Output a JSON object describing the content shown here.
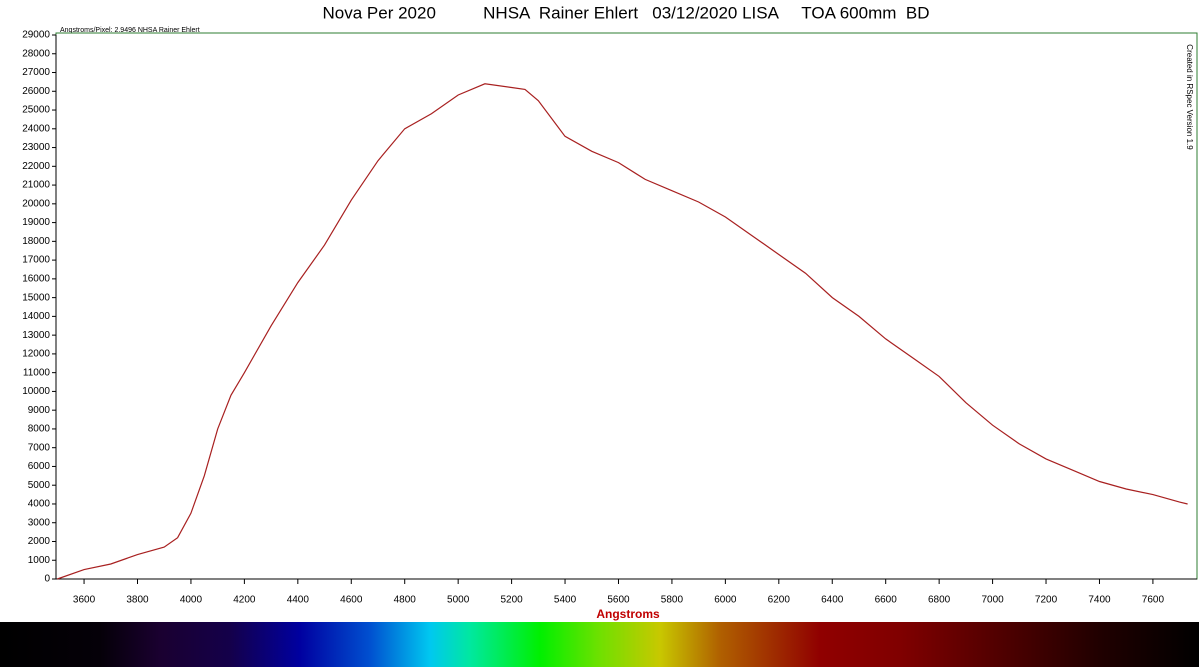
{
  "chart_data": {
    "type": "line",
    "title": "Nova Per 2020          NHSA  Rainer Ehlert   03/12/2020 LISA     TOA 600mm  BD",
    "subtitle": "Angstroms/Pixel: 2.9496 NHSA Rainer Ehlert",
    "annotation": "Created in RSpec Version 1.9",
    "x_label": "Angstroms",
    "x": [
      3500,
      3600,
      3700,
      3800,
      3900,
      3950,
      4000,
      4050,
      4100,
      4150,
      4200,
      4300,
      4400,
      4500,
      4600,
      4700,
      4800,
      4900,
      5000,
      5100,
      5200,
      5250,
      5300,
      5400,
      5500,
      5600,
      5700,
      5800,
      5900,
      6000,
      6100,
      6200,
      6300,
      6400,
      6500,
      6600,
      6700,
      6800,
      6900,
      7000,
      7100,
      7200,
      7300,
      7400,
      7500,
      7600,
      7700,
      7730
    ],
    "series": [
      {
        "color": "#a82020",
        "values": [
          0,
          500,
          800,
          1300,
          1700,
          2200,
          3500,
          5500,
          8000,
          9800,
          11000,
          13500,
          15800,
          17800,
          20200,
          22300,
          24000,
          24800,
          25800,
          26400,
          26200,
          26100,
          25500,
          23600,
          22800,
          22200,
          21300,
          20700,
          20100,
          19300,
          18300,
          17300,
          16300,
          15000,
          14000,
          12800,
          11800,
          10800,
          9400,
          8200,
          7200,
          6400,
          5800,
          5200,
          4800,
          4500,
          4100,
          4000
        ]
      }
    ],
    "xlim": [
      3495,
      7765
    ],
    "ylim": [
      0,
      29000
    ],
    "xticks": [
      3600,
      3800,
      4000,
      4200,
      4400,
      4600,
      4800,
      5000,
      5200,
      5400,
      5600,
      5800,
      6000,
      6200,
      6400,
      6600,
      6800,
      7000,
      7200,
      7400,
      7600
    ],
    "yticks": [
      0,
      1000,
      2000,
      3000,
      4000,
      5000,
      6000,
      7000,
      8000,
      9000,
      10000,
      11000,
      12000,
      13000,
      14000,
      15000,
      16000,
      17000,
      18000,
      19000,
      20000,
      21000,
      22000,
      23000,
      24000,
      25000,
      26000,
      27000,
      28000,
      29000
    ]
  }
}
